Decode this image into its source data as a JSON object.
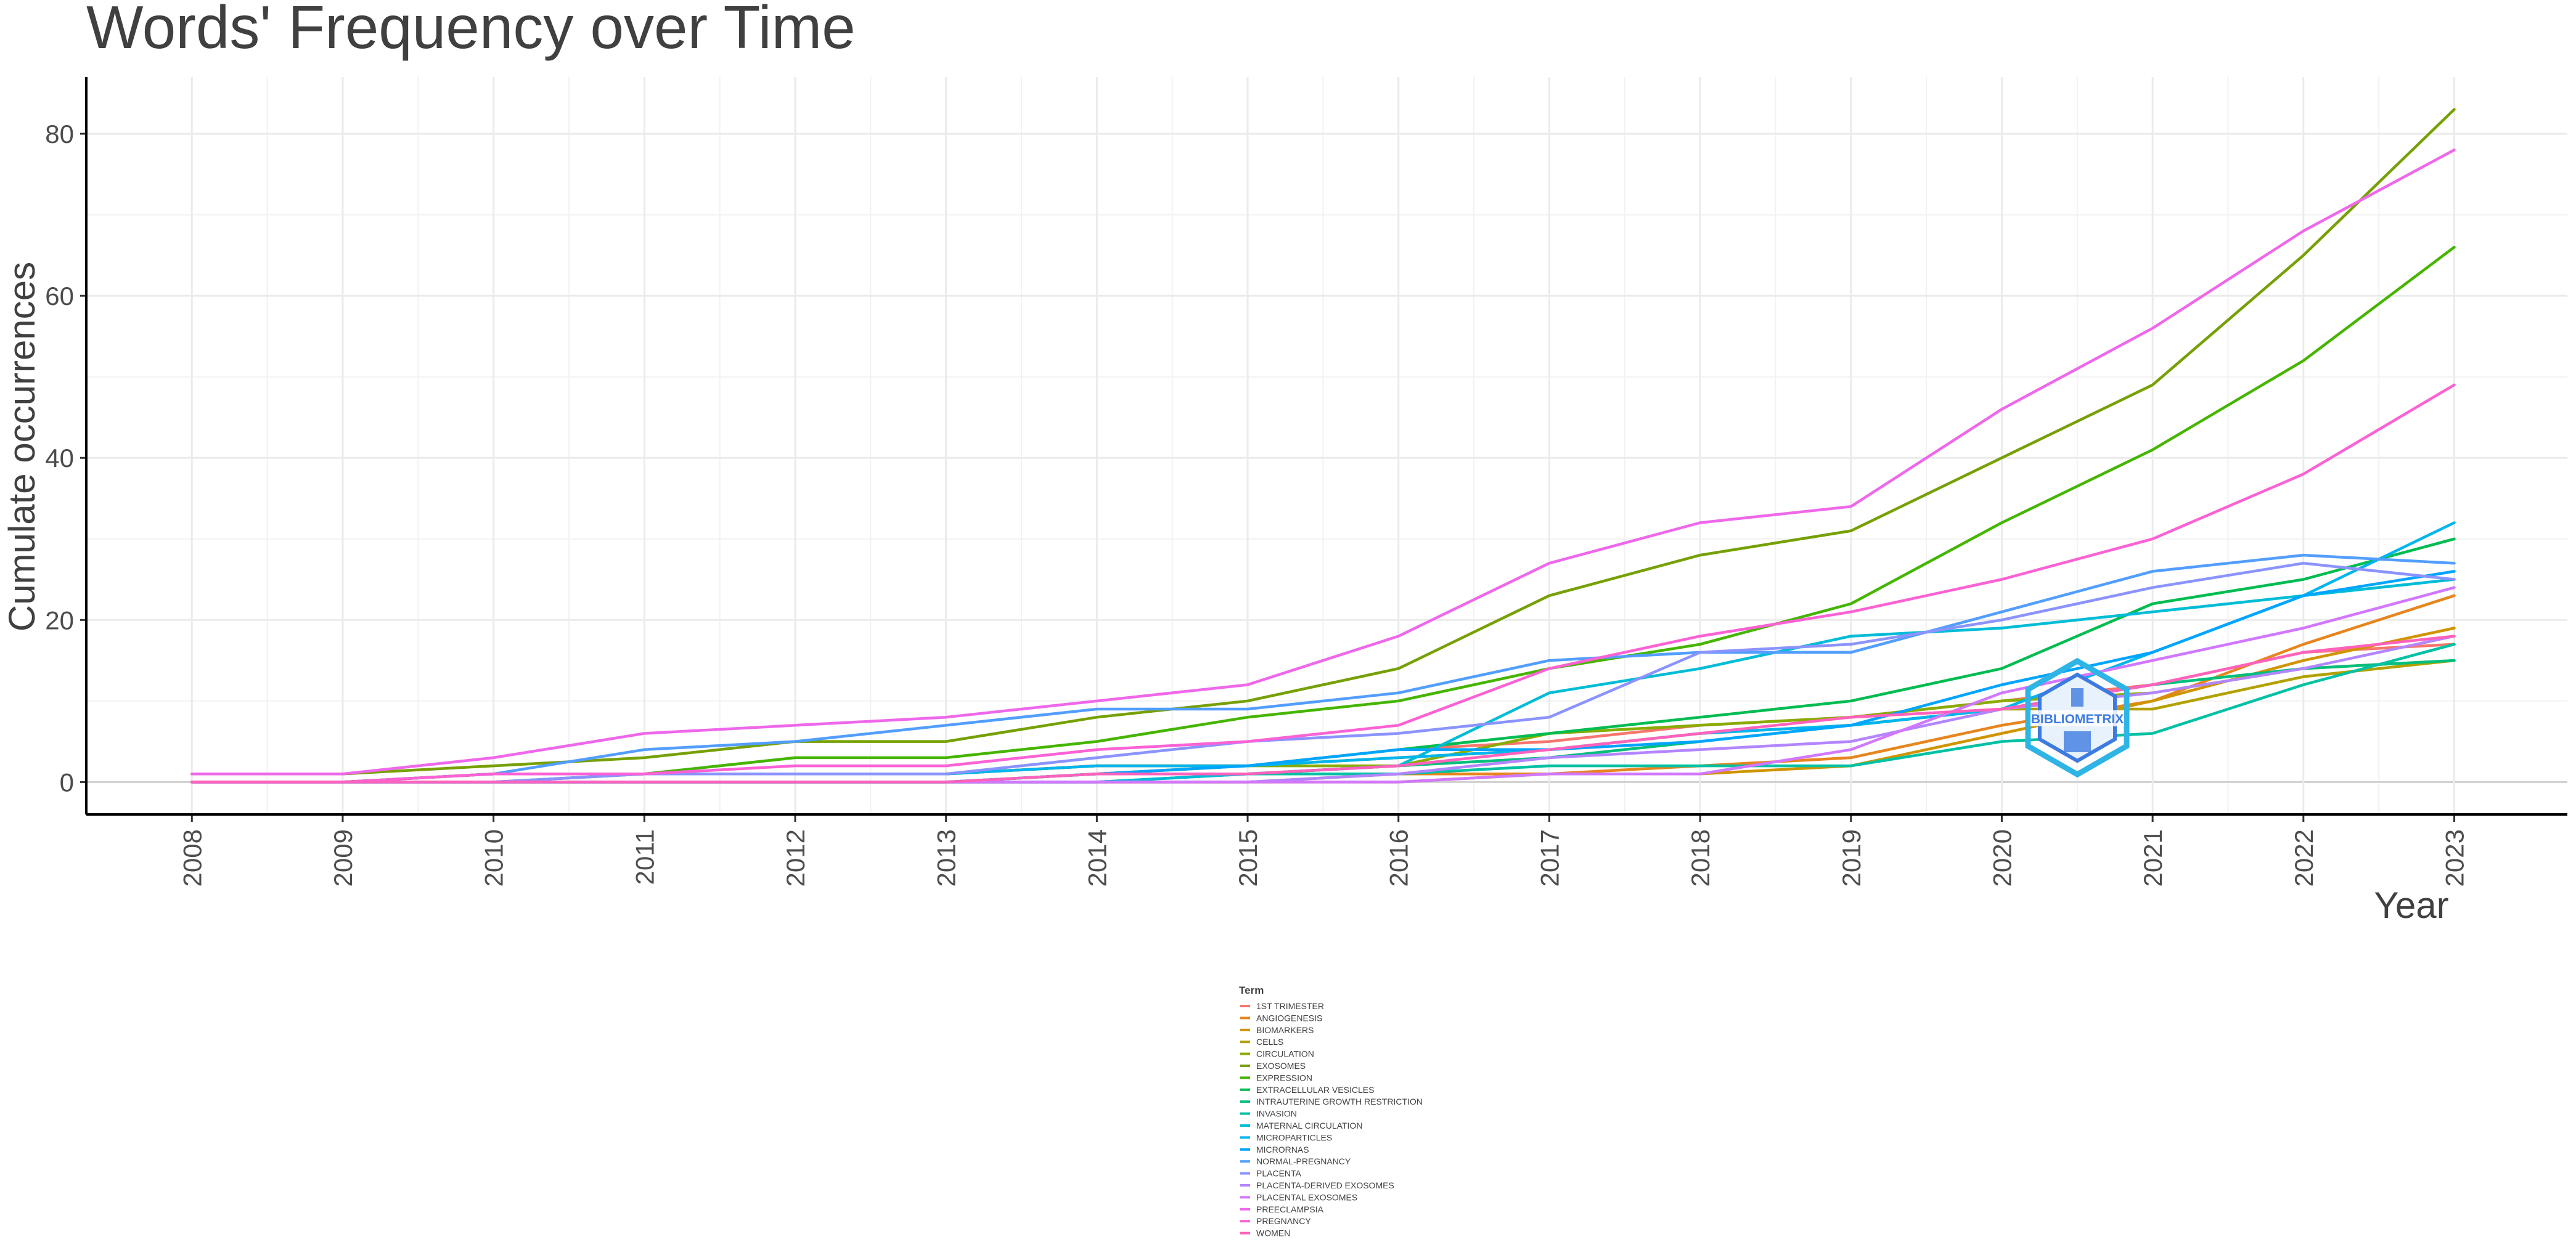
{
  "chart_data": {
    "type": "line",
    "title": "Words' Frequency over Time",
    "xlabel": "Year",
    "ylabel": "Cumulate occurrences",
    "x": [
      2008,
      2009,
      2010,
      2011,
      2012,
      2013,
      2014,
      2015,
      2016,
      2017,
      2018,
      2019,
      2020,
      2021,
      2022,
      2023
    ],
    "xlim": [
      2007.3,
      2023.75
    ],
    "ylim": [
      -4,
      87
    ],
    "yticks": [
      0,
      20,
      40,
      60,
      80
    ],
    "grid": true,
    "legend": {
      "title": "Term",
      "position": "bottom"
    },
    "series": [
      {
        "name": "1ST TRIMESTER",
        "color": "#F8766D",
        "values": [
          0,
          0,
          1,
          1,
          1,
          1,
          2,
          2,
          4,
          5,
          7,
          8,
          10,
          12,
          16,
          17
        ]
      },
      {
        "name": "ANGIOGENESIS",
        "color": "#E7851E",
        "values": [
          0,
          0,
          0,
          0,
          0,
          0,
          0,
          0,
          1,
          1,
          2,
          3,
          7,
          10,
          17,
          23
        ]
      },
      {
        "name": "BIOMARKERS",
        "color": "#D09400",
        "values": [
          0,
          0,
          0,
          0,
          0,
          0,
          0,
          0,
          0,
          1,
          1,
          2,
          6,
          10,
          15,
          19
        ]
      },
      {
        "name": "CELLS",
        "color": "#B2A100",
        "values": [
          0,
          0,
          1,
          1,
          1,
          1,
          2,
          2,
          3,
          4,
          6,
          7,
          9,
          9,
          13,
          15
        ]
      },
      {
        "name": "CIRCULATION",
        "color": "#89AC00",
        "values": [
          0,
          0,
          0,
          1,
          1,
          1,
          2,
          2,
          2,
          6,
          7,
          8,
          10,
          11,
          14,
          15
        ]
      },
      {
        "name": "EXOSOMES",
        "color": "#76A004",
        "values": [
          1,
          1,
          2,
          3,
          5,
          5,
          8,
          10,
          14,
          23,
          28,
          31,
          40,
          49,
          65,
          83
        ]
      },
      {
        "name": "EXPRESSION",
        "color": "#45B500",
        "values": [
          0,
          0,
          1,
          1,
          3,
          3,
          5,
          8,
          10,
          14,
          17,
          22,
          32,
          41,
          52,
          66
        ]
      },
      {
        "name": "EXTRACELLULAR VESICLES",
        "color": "#00BC51",
        "values": [
          0,
          0,
          0,
          0,
          0,
          0,
          1,
          2,
          4,
          6,
          8,
          10,
          14,
          22,
          25,
          30
        ]
      },
      {
        "name": "INTRAUTERINE GROWTH RESTRICTION",
        "color": "#00BF7D",
        "values": [
          0,
          0,
          0,
          0,
          0,
          0,
          1,
          1,
          2,
          3,
          5,
          7,
          9,
          12,
          14,
          15
        ]
      },
      {
        "name": "INVASION",
        "color": "#00C1A3",
        "values": [
          0,
          0,
          0,
          0,
          0,
          0,
          0,
          1,
          1,
          2,
          2,
          2,
          5,
          6,
          12,
          17
        ]
      },
      {
        "name": "MATERNAL CIRCULATION",
        "color": "#00BCD7",
        "values": [
          0,
          0,
          0,
          0,
          0,
          0,
          0,
          1,
          2,
          11,
          14,
          18,
          19,
          21,
          23,
          25
        ]
      },
      {
        "name": "MICROPARTICLES",
        "color": "#00B5EE",
        "values": [
          0,
          0,
          0,
          1,
          1,
          1,
          2,
          2,
          3,
          4,
          6,
          7,
          9,
          16,
          23,
          32
        ]
      },
      {
        "name": "MICRORNAS",
        "color": "#00A5FF",
        "values": [
          0,
          0,
          0,
          0,
          0,
          0,
          1,
          2,
          4,
          4,
          5,
          7,
          12,
          16,
          23,
          26
        ]
      },
      {
        "name": "NORMAL-PREGNANCY",
        "color": "#529EFF",
        "values": [
          0,
          0,
          1,
          4,
          5,
          7,
          9,
          9,
          11,
          15,
          16,
          16,
          21,
          26,
          28,
          27
        ]
      },
      {
        "name": "PLACENTA",
        "color": "#8B93FF",
        "values": [
          0,
          0,
          0,
          1,
          1,
          1,
          3,
          5,
          6,
          8,
          16,
          17,
          20,
          24,
          27,
          25
        ]
      },
      {
        "name": "PLACENTA-DERIVED EXOSOMES",
        "color": "#B385FF",
        "values": [
          0,
          0,
          0,
          0,
          0,
          0,
          0,
          0,
          1,
          3,
          4,
          5,
          9,
          11,
          14,
          18
        ]
      },
      {
        "name": "PLACENTAL EXOSOMES",
        "color": "#D277FF",
        "values": [
          0,
          0,
          0,
          0,
          0,
          0,
          0,
          0,
          0,
          1,
          1,
          4,
          11,
          15,
          19,
          24
        ]
      },
      {
        "name": "PREECLAMPSIA",
        "color": "#EF67EB",
        "values": [
          1,
          1,
          3,
          6,
          7,
          8,
          10,
          12,
          18,
          27,
          32,
          34,
          46,
          56,
          68,
          78
        ]
      },
      {
        "name": "PREGNANCY",
        "color": "#FC61D5",
        "values": [
          0,
          0,
          1,
          1,
          2,
          2,
          4,
          5,
          7,
          14,
          18,
          21,
          25,
          30,
          38,
          49
        ]
      },
      {
        "name": "WOMEN",
        "color": "#FF62BC",
        "values": [
          0,
          0,
          0,
          0,
          0,
          0,
          1,
          1,
          2,
          4,
          6,
          8,
          9,
          12,
          16,
          18
        ]
      }
    ]
  },
  "watermark": {
    "text": "BIBLIOMETRIX",
    "color": "#3d7be0"
  }
}
